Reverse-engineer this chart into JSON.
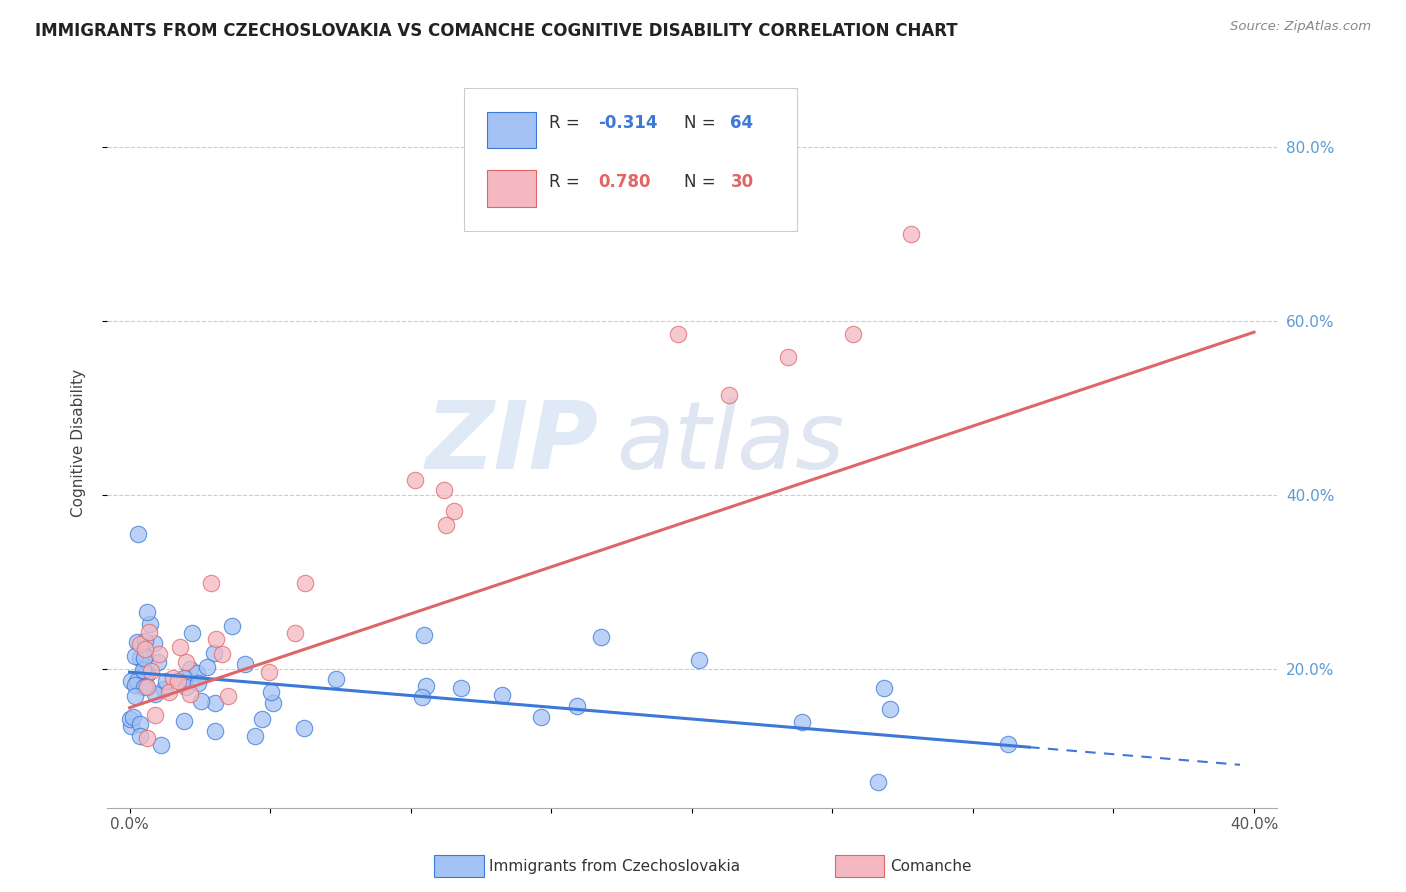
{
  "title": "IMMIGRANTS FROM CZECHOSLOVAKIA VS COMANCHE COGNITIVE DISABILITY CORRELATION CHART",
  "source": "Source: ZipAtlas.com",
  "ylabel": "Cognitive Disability",
  "color_blue": "#a4c2f4",
  "color_pink": "#f4b8c1",
  "color_blue_line": "#3c78d8",
  "color_pink_line": "#e06666",
  "watermark_zip": "ZIP",
  "watermark_atlas": "atlas",
  "R_blue": "-0.314",
  "N_blue": "64",
  "R_pink": "0.780",
  "N_pink": "30"
}
